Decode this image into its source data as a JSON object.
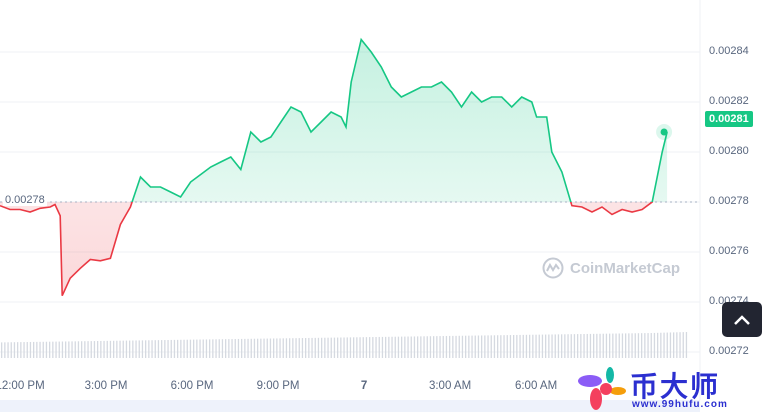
{
  "chart_data": {
    "type": "line",
    "title": "",
    "ylim": [
      0.00271,
      0.002858
    ],
    "y_ticks": [
      "0.00284",
      "0.00282",
      "0.00280",
      "0.00278",
      "0.00276",
      "0.00274",
      "0.00272"
    ],
    "y_tick_values": [
      0.00284,
      0.00282,
      0.0028,
      0.00278,
      0.00276,
      0.00274,
      0.00272
    ],
    "x_ticks": [
      "12:00 PM",
      "3:00 PM",
      "6:00 PM",
      "9:00 PM",
      "7",
      "3:00 AM",
      "6:00 AM"
    ],
    "x_tick_hours": [
      0,
      3,
      6,
      9,
      12,
      15,
      18
    ],
    "xlim_hours": [
      -0.7,
      23.3
    ],
    "baseline": 0.00278,
    "baseline_label": "0.00278",
    "current_price": "0.00281",
    "series": [
      {
        "name": "Price",
        "x_hours": [
          -0.7,
          -0.35,
          0,
          0.35,
          0.7,
          1.05,
          1.22,
          1.4,
          1.47,
          1.75,
          2.1,
          2.45,
          2.8,
          3.15,
          3.5,
          3.85,
          4.2,
          4.55,
          4.9,
          5.25,
          5.6,
          5.95,
          6.3,
          6.65,
          7,
          7.35,
          7.7,
          8.05,
          8.4,
          8.75,
          9.1,
          9.45,
          9.8,
          10.15,
          10.5,
          10.85,
          11.2,
          11.37,
          11.55,
          11.9,
          12.25,
          12.6,
          12.95,
          13.3,
          13.65,
          14,
          14.35,
          14.7,
          15.05,
          15.4,
          15.75,
          16.1,
          16.45,
          16.8,
          17.15,
          17.5,
          17.85,
          18.02,
          18.37,
          18.55,
          18.9,
          19.25,
          19.6,
          19.95,
          20.3,
          20.65,
          21,
          21.35,
          21.7,
          22.05,
          22.4,
          22.57
        ],
        "values": [
          0.0027785,
          0.002777,
          0.002777,
          0.002776,
          0.0027775,
          0.002778,
          0.002779,
          0.0027745,
          0.0027425,
          0.0027495,
          0.0027535,
          0.002757,
          0.0027565,
          0.0027575,
          0.002771,
          0.002778,
          0.00279,
          0.002786,
          0.002786,
          0.002784,
          0.002782,
          0.002788,
          0.002791,
          0.002794,
          0.002796,
          0.002798,
          0.002793,
          0.002808,
          0.002804,
          0.002806,
          0.002812,
          0.002818,
          0.002816,
          0.002808,
          0.002812,
          0.002816,
          0.002814,
          0.00281,
          0.002828,
          0.002845,
          0.00284,
          0.002834,
          0.002826,
          0.002822,
          0.002824,
          0.002826,
          0.002826,
          0.002828,
          0.002824,
          0.002818,
          0.002824,
          0.00282,
          0.002822,
          0.002822,
          0.002818,
          0.002822,
          0.00282,
          0.002814,
          0.002814,
          0.0028,
          0.002792,
          0.0027785,
          0.002778,
          0.002776,
          0.002778,
          0.002775,
          0.002777,
          0.002776,
          0.002777,
          0.00278,
          0.0028,
          0.002808
        ]
      },
      {
        "name": "Volume",
        "relative": [
          0.6,
          0.62,
          0.64,
          0.66,
          0.68,
          0.7,
          0.72,
          0.74,
          0.76,
          0.78,
          0.8,
          0.82,
          0.84,
          0.86,
          0.88,
          0.9,
          0.92,
          0.94,
          0.96,
          1.0
        ]
      }
    ],
    "watermark": "CoinMarketCap"
  },
  "brand": {
    "name": "币大师",
    "url": "www.99hufu.com"
  },
  "colors": {
    "up": "#16c784",
    "down": "#ea3943"
  }
}
